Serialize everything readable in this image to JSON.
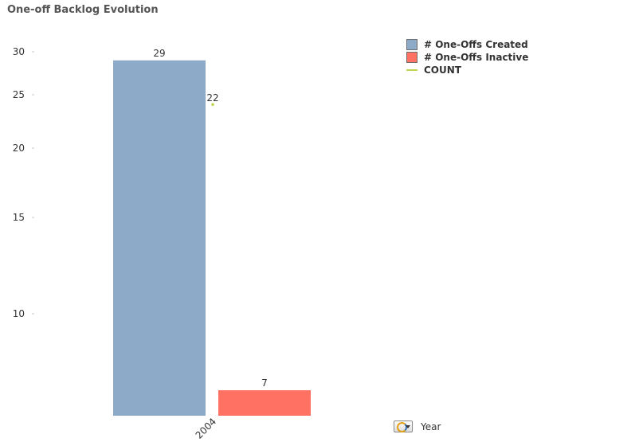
{
  "chart_data": {
    "type": "bar",
    "title": "One-off Backlog Evolution",
    "categories": [
      "2004"
    ],
    "series": [
      {
        "name": "# One-Offs Created",
        "type": "bar",
        "values": [
          29
        ],
        "color": "#8eaac9"
      },
      {
        "name": "# One-Offs Inactive",
        "type": "bar",
        "values": [
          7
        ],
        "color": "#fe7163"
      },
      {
        "name": "COUNT",
        "type": "line",
        "values": [
          22
        ],
        "color": "#c2d452"
      }
    ],
    "y_ticks": [
      10,
      15,
      20,
      25,
      30
    ],
    "ylim": [
      6,
      30.8
    ],
    "xlabel": "",
    "ylabel": "",
    "grid": false,
    "legend_position": "top-right",
    "data_labels": true
  },
  "dimension_control": {
    "icon": "cycle-group-icon",
    "label": "Year"
  }
}
